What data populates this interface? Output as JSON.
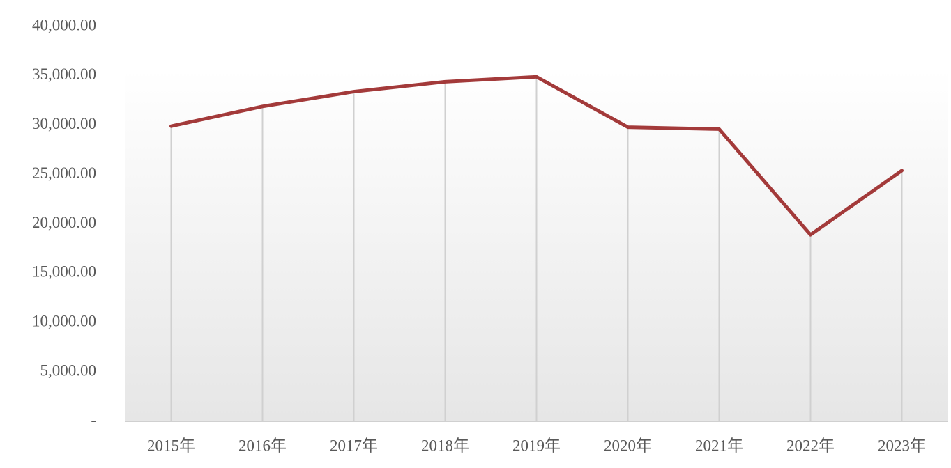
{
  "chart_data": {
    "type": "line",
    "categories": [
      "2015年",
      "2016年",
      "2017年",
      "2018年",
      "2019年",
      "2020年",
      "2021年",
      "2022年",
      "2023年"
    ],
    "values": [
      29900,
      31900,
      33400,
      34400,
      34900,
      29800,
      29600,
      18900,
      25400
    ],
    "color": "#a33a3a",
    "ylim": [
      0,
      40000
    ],
    "yticks": [
      {
        "value": 0,
        "label": "-"
      },
      {
        "value": 5000,
        "label": "5,000.00"
      },
      {
        "value": 10000,
        "label": "10,000.00"
      },
      {
        "value": 15000,
        "label": "15,000.00"
      },
      {
        "value": 20000,
        "label": "20,000.00"
      },
      {
        "value": 25000,
        "label": "25,000.00"
      },
      {
        "value": 30000,
        "label": "30,000.00"
      },
      {
        "value": 35000,
        "label": "35,000.00"
      },
      {
        "value": 40000,
        "label": "40,000.00"
      }
    ],
    "drop_lines": true
  }
}
